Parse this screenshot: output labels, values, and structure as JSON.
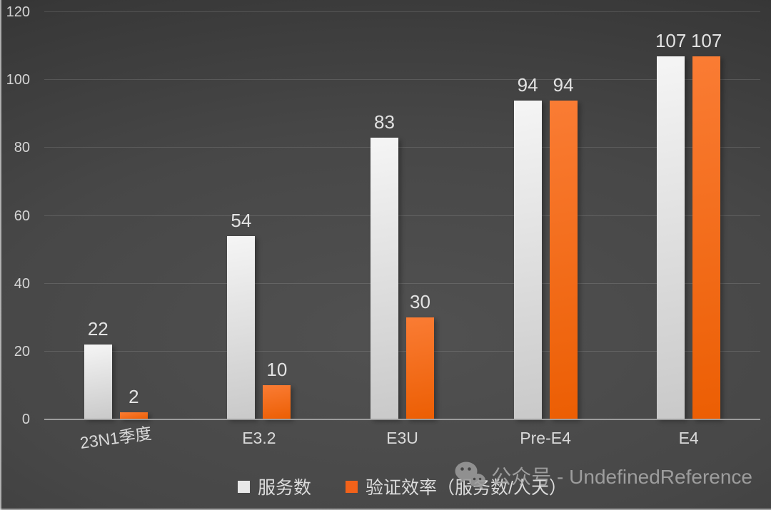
{
  "chart_data": {
    "type": "bar",
    "title": "",
    "categories": [
      "23N1季度",
      "E3.2",
      "E3U",
      "Pre-E4",
      "E4"
    ],
    "series": [
      {
        "name": "服务数",
        "values": [
          22,
          54,
          83,
          94,
          107
        ],
        "color_top": "#f5f5f5",
        "color_bottom": "#c9c9c9",
        "legend_color": "#e8e8e8"
      },
      {
        "name": "验证效率（服务数/人天）",
        "values": [
          2,
          10,
          30,
          94,
          107
        ],
        "color_top": "#fa7c34",
        "color_bottom": "#ec5e03",
        "legend_color": "#f2621a"
      }
    ],
    "ylim": [
      0,
      120
    ],
    "yticks": [
      0,
      20,
      40,
      60,
      80,
      100,
      120
    ],
    "grid": true,
    "legend_position": "bottom",
    "data_labels": true
  },
  "colors": {
    "background": "#474747",
    "grid_line": "rgba(255,255,255,0.13)",
    "axis_line": "#9d9d9d",
    "tick_text": "#d6d6d6",
    "value_label_text": "#e3e3e3",
    "watermark_text_color": "#a9a9a9"
  },
  "watermark": {
    "icon": "wechat-icon",
    "text": "公众号 - UndefinedReference"
  }
}
